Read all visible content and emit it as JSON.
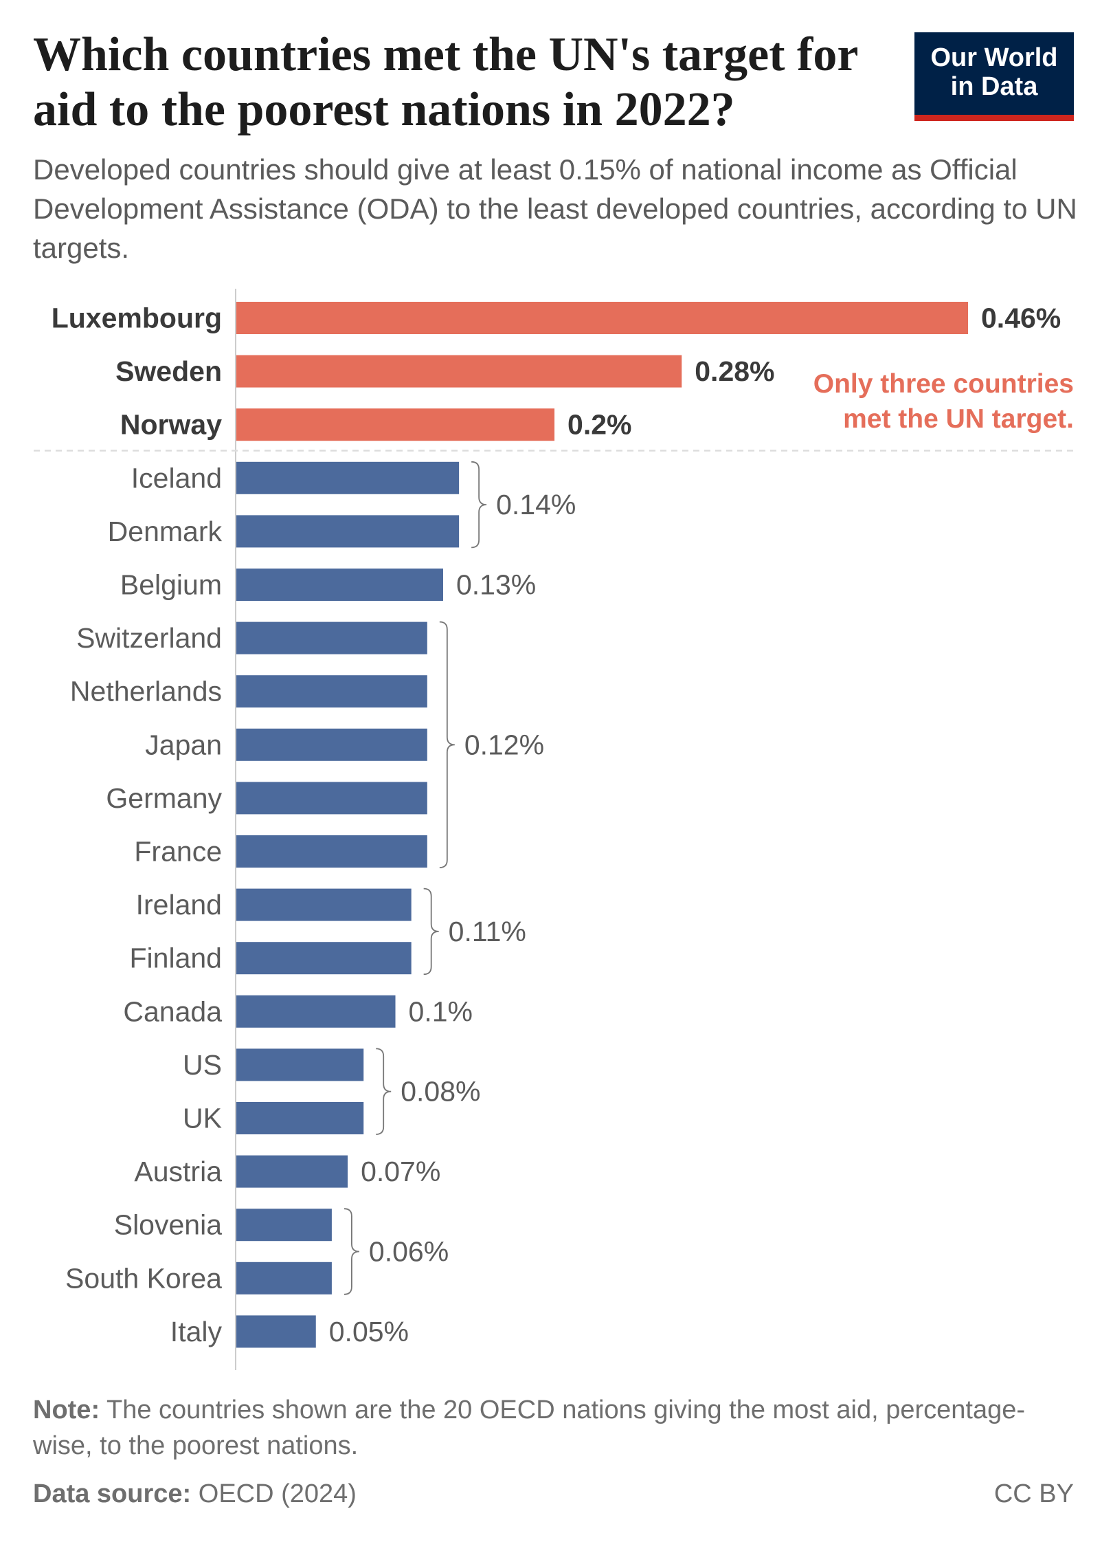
{
  "header": {
    "title": "Which countries met the UN's target for aid to the poorest nations in 2022?",
    "subtitle": "Developed countries should give at least 0.15% of national income as Official Development Assistance (ODA) to the least developed countries, according to UN targets.",
    "logo_line1": "Our World",
    "logo_line2": "in Data"
  },
  "chart_data": {
    "type": "bar",
    "orientation": "horizontal",
    "categories": [
      "Luxembourg",
      "Sweden",
      "Norway",
      "Iceland",
      "Denmark",
      "Belgium",
      "Switzerland",
      "Netherlands",
      "Japan",
      "Germany",
      "France",
      "Ireland",
      "Finland",
      "Canada",
      "US",
      "UK",
      "Austria",
      "Slovenia",
      "South Korea",
      "Italy"
    ],
    "values": [
      0.46,
      0.28,
      0.2,
      0.14,
      0.14,
      0.13,
      0.12,
      0.12,
      0.12,
      0.12,
      0.12,
      0.11,
      0.11,
      0.1,
      0.08,
      0.08,
      0.07,
      0.06,
      0.06,
      0.05
    ],
    "value_labels": [
      "0.46%",
      "0.28%",
      "0.2%",
      "0.14%",
      "0.14%",
      "0.13%",
      "0.12%",
      "0.12%",
      "0.12%",
      "0.12%",
      "0.12%",
      "0.11%",
      "0.11%",
      "0.1%",
      "0.08%",
      "0.08%",
      "0.07%",
      "0.06%",
      "0.06%",
      "0.05%"
    ],
    "unit": "%",
    "met_target": [
      true,
      true,
      true,
      false,
      false,
      false,
      false,
      false,
      false,
      false,
      false,
      false,
      false,
      false,
      false,
      false,
      false,
      false,
      false,
      false
    ],
    "colors": {
      "met": "#e56e5a",
      "not_met": "#4c6a9c"
    },
    "annotation_line1": "Only three countries",
    "annotation_line2": "met the UN target.",
    "xlim": [
      0,
      0.46
    ],
    "grid": false,
    "legend": "none"
  },
  "footer": {
    "note_label": "Note:",
    "note_text": " The countries shown are the 20 OECD nations giving the most aid, percentage-wise, to the poorest nations.",
    "source_label": "Data source:",
    "source_text": " OECD (2024)",
    "license": "CC BY"
  }
}
